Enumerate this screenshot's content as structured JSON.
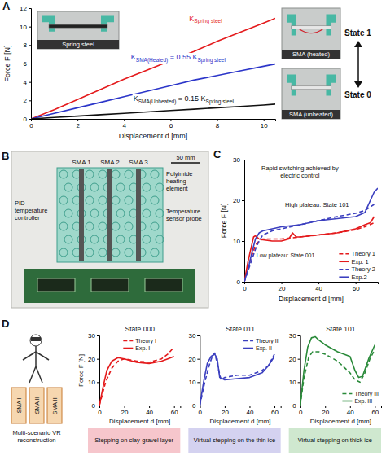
{
  "chart_data": [
    {
      "type": "line",
      "x_label": "Displacement d [mm]",
      "y_label": "Force F [N]",
      "xlim": [
        0,
        10.5
      ],
      "ylim": [
        0,
        12
      ],
      "xticks": [
        0,
        2,
        4,
        6,
        8,
        10
      ],
      "yticks": [
        0,
        2,
        4,
        6,
        8,
        10,
        12
      ],
      "grid": false,
      "series": [
        {
          "color": "#e41a1c",
          "line_style": "solid",
          "x": [
            0,
            1,
            2,
            3,
            4,
            5,
            6,
            7,
            8,
            9,
            10,
            10.5
          ],
          "values": [
            0,
            1,
            2.1,
            3.2,
            4.3,
            5.3,
            6.3,
            7.3,
            8.4,
            9.4,
            10.4,
            10.9
          ]
        },
        {
          "color": "#2b35c9",
          "line_style": "solid",
          "x": [
            0,
            1,
            2,
            3,
            4,
            5,
            6,
            7,
            8,
            9,
            10,
            10.5
          ],
          "values": [
            0,
            0.6,
            1.2,
            1.8,
            2.4,
            3,
            3.6,
            4.2,
            4.7,
            5.2,
            5.7,
            5.95
          ]
        },
        {
          "color": "#111111",
          "line_style": "solid",
          "x": [
            0,
            1,
            2,
            3,
            4,
            5,
            6,
            7,
            8,
            9,
            10,
            10.5
          ],
          "values": [
            0,
            0.15,
            0.3,
            0.45,
            0.6,
            0.75,
            0.9,
            1.05,
            1.2,
            1.35,
            1.5,
            1.6
          ]
        }
      ],
      "annotations": [
        {
          "parts": [
            "K",
            "Spring steel"
          ]
        },
        {
          "parts": [
            "K",
            "SMA(Heated)",
            " = 0.55 K",
            "Spring steel"
          ]
        },
        {
          "parts": [
            "K",
            "SMA(Unheated)",
            " = 0.15 K",
            "Spring steel"
          ]
        }
      ]
    },
    {
      "type": "line",
      "x_label": "Displacement d [mm]",
      "y_label": "Force F [N]",
      "xlim": [
        0,
        72
      ],
      "ylim": [
        0,
        30
      ],
      "xticks": [
        0,
        20,
        40,
        60
      ],
      "yticks": [
        0,
        10,
        20,
        30
      ],
      "grid": false,
      "legend": "bottom-right",
      "series": [
        {
          "name": "Theory 1",
          "color": "#e41a1c",
          "line_style": "dashed",
          "x": [
            0,
            3,
            6,
            8,
            10,
            20,
            30,
            40,
            50,
            60,
            65,
            70
          ],
          "values": [
            0,
            5,
            9,
            10,
            10.5,
            10.5,
            11,
            11.5,
            12,
            12.8,
            13.5,
            14.5
          ]
        },
        {
          "name": "Exp. 1",
          "color": "#e41a1c",
          "line_style": "solid",
          "x": [
            0,
            2,
            4,
            5,
            6,
            8,
            10,
            15,
            20,
            24,
            26,
            28,
            30,
            40,
            50,
            60,
            65,
            68,
            70
          ],
          "values": [
            0,
            5,
            9,
            11,
            11.3,
            10.5,
            10.3,
            10,
            10,
            10.5,
            12,
            11,
            11,
            11.5,
            12,
            13,
            14,
            14.5,
            16
          ]
        },
        {
          "name": "Theory 2",
          "color": "#3b3fbf",
          "line_style": "dashed",
          "x": [
            0,
            3,
            6,
            8,
            10,
            15,
            20,
            30,
            40,
            50,
            60,
            65,
            70
          ],
          "values": [
            0,
            4,
            8,
            10,
            11.5,
            12.5,
            13,
            14,
            15,
            16,
            16.8,
            17.5,
            19
          ]
        },
        {
          "name": "Exp.2",
          "color": "#3b3fbf",
          "line_style": "solid",
          "x": [
            0,
            2,
            4,
            6,
            8,
            10,
            15,
            20,
            30,
            40,
            50,
            60,
            65,
            68,
            70,
            72
          ],
          "values": [
            0,
            3,
            7,
            10.5,
            12,
            12.5,
            13,
            13.5,
            14,
            15,
            15.5,
            16,
            17,
            20,
            22,
            23
          ]
        }
      ],
      "annotations": [
        "Rapid switching achieved by electric control",
        "High plateau: State 101",
        "Low plateau: State 001"
      ]
    },
    {
      "type": "line",
      "title": "State 000",
      "x_label": "Displacement d [mm]",
      "y_label": "Force F [N]",
      "xlim": [
        0,
        65
      ],
      "ylim": [
        0,
        30
      ],
      "xticks": [
        0,
        20,
        40,
        60
      ],
      "yticks": [
        0,
        10,
        20,
        30
      ],
      "grid": false,
      "legend": "top",
      "series": [
        {
          "name": "Theory I",
          "color": "#e41a1c",
          "line_style": "dashed",
          "x": [
            0,
            5,
            10,
            15,
            20,
            30,
            40,
            50,
            55,
            60
          ],
          "values": [
            0,
            10,
            16,
            19,
            20,
            19,
            18.5,
            20,
            22,
            25
          ]
        },
        {
          "name": "Exp. I",
          "color": "#e41a1c",
          "line_style": "solid",
          "x": [
            0,
            3,
            6,
            10,
            15,
            20,
            30,
            40,
            50,
            55,
            60
          ],
          "values": [
            0,
            8,
            15,
            19,
            20.5,
            20,
            18.5,
            18,
            19,
            20,
            21
          ]
        }
      ],
      "caption": "Stepping on clay-gravel layer"
    },
    {
      "type": "line",
      "title": "State 011",
      "x_label": "Displacement d [mm]",
      "xlim": [
        0,
        65
      ],
      "ylim": [
        0,
        30
      ],
      "xticks": [
        0,
        20,
        40,
        60
      ],
      "yticks": [
        0,
        10,
        20,
        30
      ],
      "grid": false,
      "legend": "top-right",
      "series": [
        {
          "name": "Theory II",
          "color": "#3b3fbf",
          "line_style": "dashed",
          "x": [
            0,
            4,
            8,
            10,
            12,
            14,
            17,
            20,
            30,
            40,
            50,
            55,
            60
          ],
          "values": [
            0,
            10,
            18,
            21,
            22.5,
            18,
            11,
            12,
            13,
            13,
            15,
            17,
            22
          ]
        },
        {
          "name": "Exp. II",
          "color": "#3b3fbf",
          "line_style": "solid",
          "x": [
            0,
            3,
            6,
            9,
            12,
            14,
            16,
            20,
            30,
            40,
            50,
            55,
            60
          ],
          "values": [
            0,
            10,
            18,
            21,
            22,
            20,
            12,
            11,
            11.5,
            12,
            14,
            17,
            21
          ]
        }
      ],
      "caption": "Virtual stepping on the thin ice"
    },
    {
      "type": "line",
      "title": "State 101",
      "x_label": "Displacement d [mm]",
      "xlim": [
        0,
        65
      ],
      "ylim": [
        0,
        30
      ],
      "xticks": [
        0,
        20,
        40,
        60
      ],
      "yticks": [
        0,
        10,
        20,
        30
      ],
      "grid": false,
      "legend": "bottom-right",
      "series": [
        {
          "name": "Theory III",
          "color": "#2a8a3a",
          "line_style": "dashed",
          "x": [
            0,
            3,
            7,
            10,
            15,
            20,
            30,
            40,
            44,
            48,
            52,
            56,
            60
          ],
          "values": [
            0,
            12,
            21,
            23,
            23,
            22,
            19,
            14,
            11,
            10,
            14,
            20,
            24
          ]
        },
        {
          "name": "Exp. III",
          "color": "#2a8a3a",
          "line_style": "solid",
          "x": [
            0,
            3,
            6,
            9,
            12,
            15,
            20,
            30,
            40,
            44,
            47,
            50,
            55,
            60
          ],
          "values": [
            0,
            15,
            25,
            29,
            29.5,
            28,
            26,
            23,
            21,
            15,
            12,
            12.5,
            20,
            26
          ]
        }
      ],
      "caption": "Virtual stepping on thick ice"
    }
  ],
  "figure": {
    "panel_letters": [
      "A",
      "B",
      "C",
      "D"
    ],
    "a_inset": "Spring steel",
    "a_photos": [
      {
        "label": "SMA (heated)",
        "state": "State 1"
      },
      {
        "label": "SMA (unheated)",
        "state": "State 0"
      }
    ],
    "b_photo": {
      "sma_labels": [
        "SMA 1",
        "SMA 2",
        "SMA 3"
      ],
      "heater": "Polyimide heating element",
      "controller": "PID temperature controller",
      "sensor": "Temperature sensor probe",
      "scale": "50 mm"
    },
    "d_cartoon": {
      "sma_labels": [
        "SMA I",
        "SMA II",
        "SMA III"
      ],
      "caption": "Multi-scenario VR reconstruction"
    }
  }
}
